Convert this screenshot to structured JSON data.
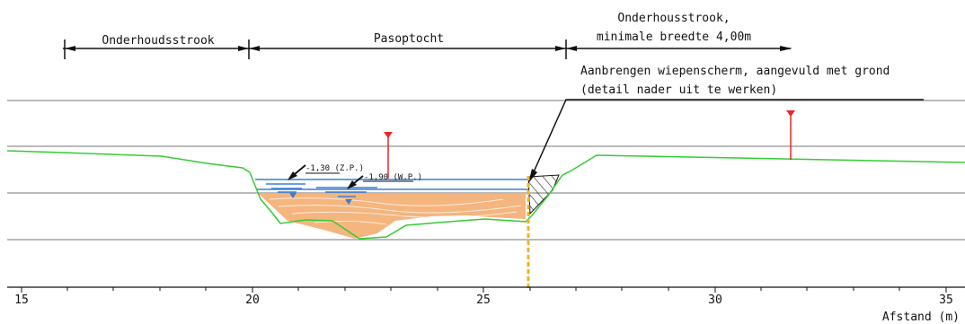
{
  "dimensions": {
    "zone_left": "Onderhoudsstrook",
    "zone_middle": "Pasoptocht",
    "zone_right_line1": "Onderhousstrook,",
    "zone_right_line2": "minimale breedte 4,00m"
  },
  "annotation": {
    "line1": "Aanbrengen wiepenscherm, aangevuld met grond",
    "line2": "(detail nader uit te werken)"
  },
  "levels": {
    "zp": "-1,30 (Z.P.)",
    "wp": "-1,90 (W.P.)"
  },
  "axis": {
    "label": "Afstand (m)",
    "ticks": [
      "15",
      "20",
      "25",
      "30",
      "35"
    ]
  },
  "colors": {
    "ground": "#33cc33",
    "water": "#3a7fd5",
    "sediment": "#f2a868",
    "screen": "#f0b323",
    "marker": "#e8262b",
    "gridline": "#909090"
  }
}
